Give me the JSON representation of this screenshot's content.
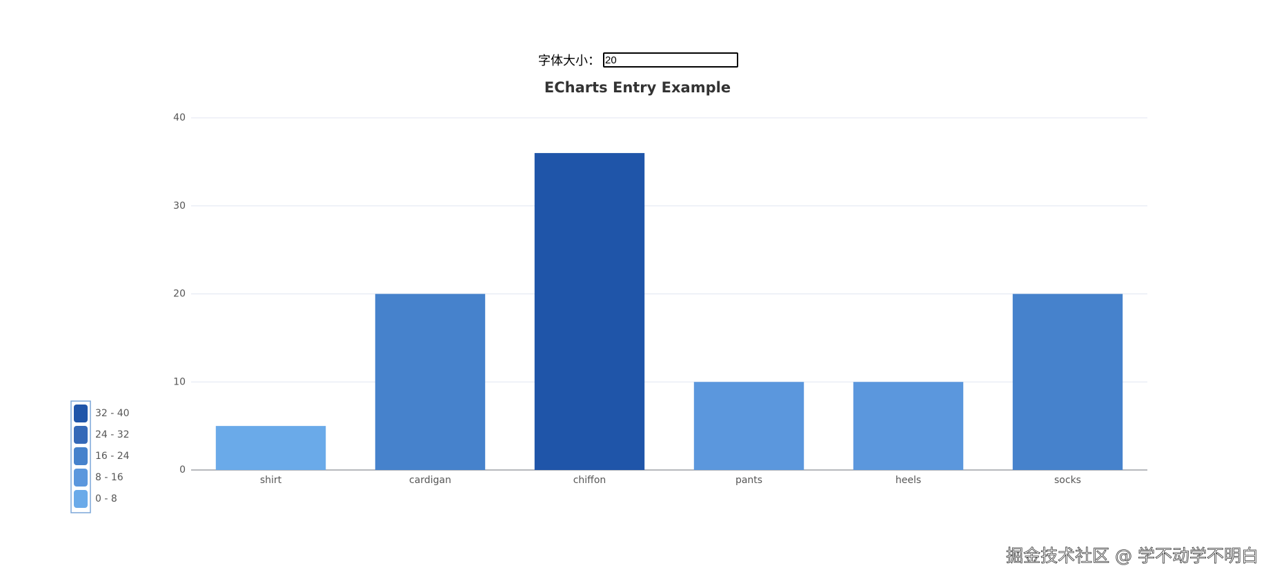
{
  "controls": {
    "font_size_label": "字体大小：",
    "font_size_value": "20"
  },
  "chart_data": {
    "type": "bar",
    "title": "ECharts Entry Example",
    "categories": [
      "shirt",
      "cardigan",
      "chiffon",
      "pants",
      "heels",
      "socks"
    ],
    "values": [
      5,
      20,
      36,
      10,
      10,
      20
    ],
    "ylim": [
      0,
      40
    ],
    "yticks": [
      0,
      10,
      20,
      30,
      40
    ],
    "grid": true,
    "visual_map": {
      "corner": "bottom-left",
      "pieces": [
        {
          "min": 32,
          "max": 40,
          "label": "32 - 40",
          "color": "#1f55a9"
        },
        {
          "min": 24,
          "max": 32,
          "label": "24 - 32",
          "color": "#3569b8"
        },
        {
          "min": 16,
          "max": 24,
          "label": "16 - 24",
          "color": "#4682cc"
        },
        {
          "min": 8,
          "max": 16,
          "label": "8 - 16",
          "color": "#5b97dd"
        },
        {
          "min": 0,
          "max": 8,
          "label": "0 - 8",
          "color": "#6aaae9"
        }
      ]
    }
  },
  "watermark": "掘金技术社区 @ 学不动学不明白"
}
